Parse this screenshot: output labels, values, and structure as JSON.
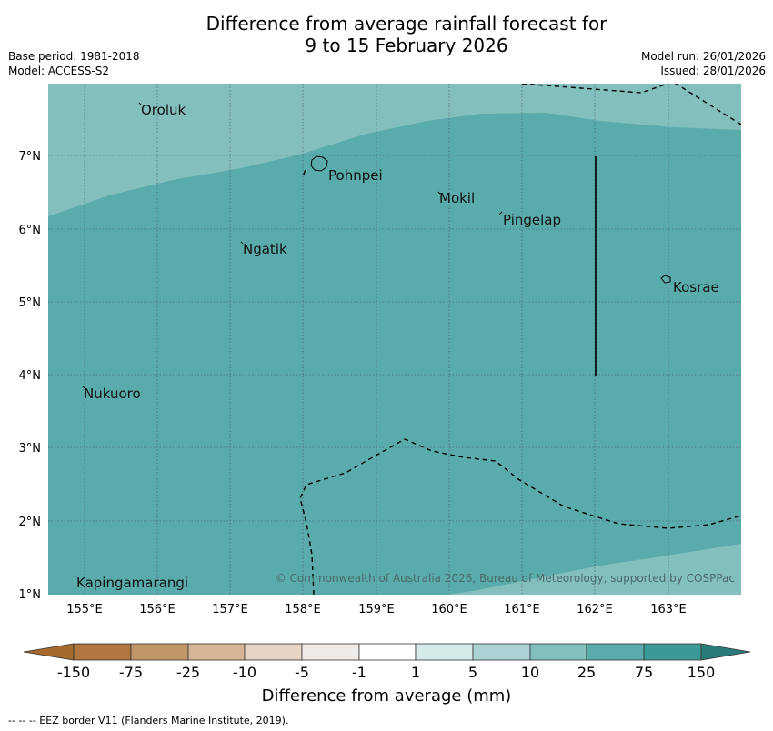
{
  "title": {
    "line1": "Difference from average rainfall forecast for",
    "line2": "9 to 15 February 2026"
  },
  "meta": {
    "base_period": "Base period: 1981-2018",
    "model": "Model: ACCESS-S2",
    "model_run": "Model run: 26/01/2026",
    "issued": "Issued: 28/01/2026"
  },
  "map": {
    "lon_range": [
      154.5,
      164.0
    ],
    "lat_range": [
      1.0,
      8.0
    ],
    "lon_ticks": [
      "155°E",
      "156°E",
      "157°E",
      "158°E",
      "159°E",
      "160°E",
      "161°E",
      "162°E",
      "163°E"
    ],
    "lat_ticks": [
      "1°N",
      "2°N",
      "3°N",
      "4°N",
      "5°N",
      "6°N",
      "7°N"
    ],
    "places": [
      {
        "name": "Oroluk",
        "lon": 155.75,
        "lat": 7.6
      },
      {
        "name": "Pohnpei",
        "lon": 158.3,
        "lat": 6.85
      },
      {
        "name": "Mokil",
        "lon": 159.85,
        "lat": 6.7
      },
      {
        "name": "Pingelap",
        "lon": 160.75,
        "lat": 6.2
      },
      {
        "name": "Ngatik",
        "lon": 157.1,
        "lat": 5.8
      },
      {
        "name": "Kosrae",
        "lon": 162.95,
        "lat": 5.3
      },
      {
        "name": "Nukuoro",
        "lon": 154.95,
        "lat": 3.85
      },
      {
        "name": "Kapingamarangi",
        "lon": 154.9,
        "lat": 1.25
      }
    ],
    "copyright": "© Commonwealth of Australia 2026, Bureau of Meteorology, supported by COSPPac",
    "colors": {
      "wet_light": "#82bfbd",
      "wet_mid": "#5aabab",
      "border": "#000000"
    }
  },
  "colorbar": {
    "ticks": [
      "-150",
      "-75",
      "-25",
      "-10",
      "-5",
      "-1",
      "1",
      "5",
      "10",
      "25",
      "75",
      "150"
    ],
    "colors": [
      "#a66a2c",
      "#b07840",
      "#c3966a",
      "#d8b496",
      "#e6d4c4",
      "#efebe8",
      "#ffffff",
      "#d6eaea",
      "#acd3d3",
      "#82bfbd",
      "#5aabab",
      "#3a9a98",
      "#2a7c7a"
    ],
    "label": "Difference from average (mm)"
  },
  "legend_note": "--  --  -- EEZ border V11 (Flanders Marine Institute, 2019)."
}
